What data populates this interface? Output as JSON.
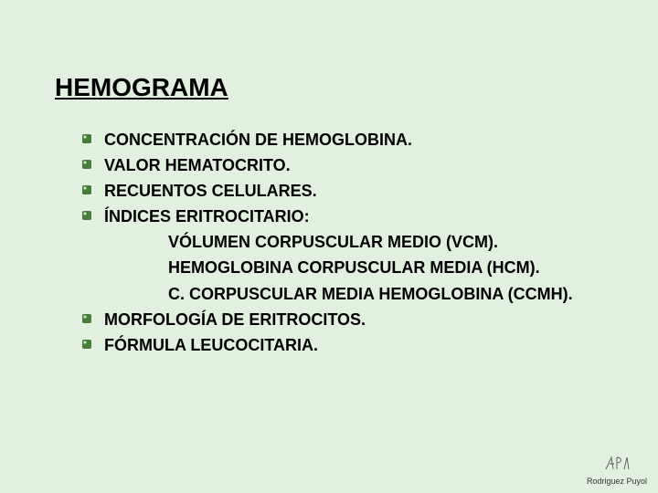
{
  "colors": {
    "background": "#e2f0e0",
    "text": "#000000",
    "bullet_fill": "#4a7d3c",
    "bullet_glint": "#cce8c0",
    "footer_text": "#333333",
    "footer_icon": "#555555"
  },
  "typography": {
    "title_fontsize": 28,
    "body_fontsize": 18,
    "footer_fontsize": 9,
    "font_family": "Arial"
  },
  "title": "HEMOGRAMA",
  "items": [
    {
      "text": "CONCENTRACIÓN DE HEMOGLOBINA."
    },
    {
      "text": "VALOR HEMATOCRITO."
    },
    {
      "text": "RECUENTOS CELULARES."
    },
    {
      "text": "ÍNDICES ERITROCITARIO:",
      "subitems": [
        "VÓLUMEN CORPUSCULAR MEDIO (VCM).",
        "HEMOGLOBINA CORPUSCULAR MEDIA (HCM).",
        "C. CORPUSCULAR MEDIA HEMOGLOBINA (CCMH)."
      ]
    },
    {
      "text": "MORFOLOGÍA DE ERITROCITOS."
    },
    {
      "text": "FÓRMULA LEUCOCITARIA."
    }
  ],
  "footer": {
    "author": "Rodriguez Puyol"
  }
}
